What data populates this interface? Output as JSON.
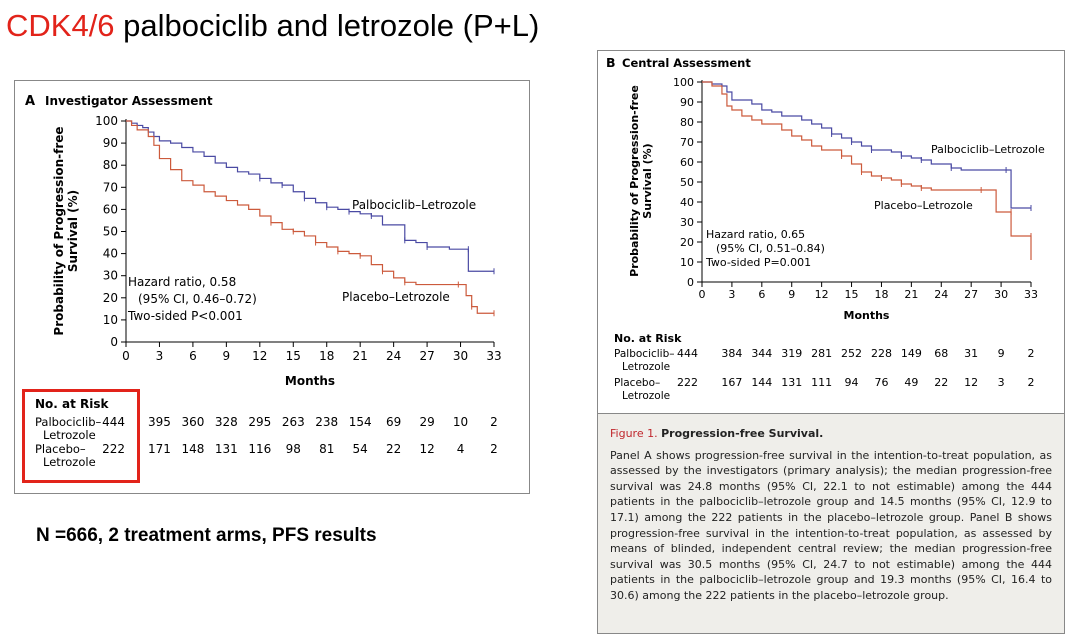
{
  "slide": {
    "title_red": "CDK4/6",
    "title_rest": "palbociclib and letrozole (P+L)",
    "summary": "N =666, 2 treatment arms, PFS results"
  },
  "colors": {
    "palbociclib": "#4a4aa3",
    "placebo": "#cc5a3c",
    "highlight": "#e2231a",
    "caption_bg": "#efeeea"
  },
  "chart_data": [
    {
      "type": "line",
      "panel_letter": "A",
      "title": "Investigator Assessment",
      "xlabel": "Months",
      "ylabel": "Probability of Progression-free Survival (%)",
      "ylabel_lines": [
        "Probability of Progression-free",
        "Survival (%)"
      ],
      "xlim": [
        0,
        33
      ],
      "ylim": [
        0,
        100
      ],
      "xticks": [
        0,
        3,
        6,
        9,
        12,
        15,
        18,
        21,
        24,
        27,
        30,
        33
      ],
      "yticks": [
        0,
        10,
        20,
        30,
        40,
        50,
        60,
        70,
        80,
        90,
        100
      ],
      "hazard_lines": [
        "Hazard ratio, 0.58",
        "(95% CI, 0.46–0.72)",
        "Two-sided P<0.001"
      ],
      "series": [
        {
          "name": "Palbociclib–Letrozole",
          "color": "#4a4aa3",
          "points": [
            [
              0,
              100
            ],
            [
              0.5,
              99
            ],
            [
              1,
              98
            ],
            [
              1.5,
              97
            ],
            [
              2,
              95
            ],
            [
              2.5,
              93
            ],
            [
              3,
              91
            ],
            [
              4,
              90
            ],
            [
              5,
              88
            ],
            [
              6,
              86
            ],
            [
              7,
              84
            ],
            [
              8,
              81
            ],
            [
              9,
              79
            ],
            [
              10,
              77
            ],
            [
              11,
              76
            ],
            [
              12,
              74
            ],
            [
              13,
              72
            ],
            [
              14,
              71
            ],
            [
              15,
              68
            ],
            [
              16,
              65
            ],
            [
              17,
              63
            ],
            [
              18,
              61
            ],
            [
              19,
              60
            ],
            [
              20,
              59
            ],
            [
              21,
              58
            ],
            [
              22,
              57
            ],
            [
              23,
              53
            ],
            [
              25,
              46
            ],
            [
              26,
              45
            ],
            [
              27,
              43
            ],
            [
              29,
              42
            ],
            [
              30.7,
              42
            ],
            [
              30.7,
              32
            ],
            [
              33,
              32
            ]
          ]
        },
        {
          "name": "Placebo–Letrozole",
          "color": "#cc5a3c",
          "points": [
            [
              0,
              100
            ],
            [
              0.5,
              98
            ],
            [
              1,
              96
            ],
            [
              2,
              93
            ],
            [
              2.5,
              89
            ],
            [
              3,
              83
            ],
            [
              4,
              78
            ],
            [
              5,
              73
            ],
            [
              6,
              71
            ],
            [
              7,
              68
            ],
            [
              8,
              66
            ],
            [
              9,
              64
            ],
            [
              10,
              62
            ],
            [
              11,
              60
            ],
            [
              12,
              57
            ],
            [
              13,
              54
            ],
            [
              14,
              51
            ],
            [
              15,
              50
            ],
            [
              16,
              48
            ],
            [
              17,
              45
            ],
            [
              18,
              43
            ],
            [
              19,
              41
            ],
            [
              20,
              40
            ],
            [
              21,
              39
            ],
            [
              22,
              35
            ],
            [
              23,
              32
            ],
            [
              24,
              29
            ],
            [
              25,
              27
            ],
            [
              26,
              26
            ],
            [
              29.8,
              26
            ],
            [
              30.5,
              21
            ],
            [
              31,
              16
            ],
            [
              31.5,
              13
            ],
            [
              33,
              13
            ]
          ]
        }
      ],
      "risk_table": {
        "header": "No. at Risk",
        "rows": [
          {
            "label": "Palbociclib–",
            "label2": "Letrozole",
            "values": [
              444,
              395,
              360,
              328,
              295,
              263,
              238,
              154,
              69,
              29,
              10,
              2
            ]
          },
          {
            "label": "Placebo–",
            "label2": "Letrozole",
            "values": [
              222,
              171,
              148,
              131,
              116,
              98,
              81,
              54,
              22,
              12,
              4,
              2
            ]
          }
        ]
      }
    },
    {
      "type": "line",
      "panel_letter": "B",
      "title": "Central Assessment",
      "xlabel": "Months",
      "ylabel": "Probability of Progression-free Survival (%)",
      "ylabel_lines": [
        "Probability of Progression-free",
        "Survival (%)"
      ],
      "xlim": [
        0,
        33
      ],
      "ylim": [
        0,
        100
      ],
      "xticks": [
        0,
        3,
        6,
        9,
        12,
        15,
        18,
        21,
        24,
        27,
        30,
        33
      ],
      "yticks": [
        0,
        10,
        20,
        30,
        40,
        50,
        60,
        70,
        80,
        90,
        100
      ],
      "hazard_lines": [
        "Hazard ratio, 0.65",
        "(95% CI, 0.51–0.84)",
        "Two-sided P=0.001"
      ],
      "series": [
        {
          "name": "Palbociclib–Letrozole",
          "color": "#4a4aa3",
          "points": [
            [
              0,
              100
            ],
            [
              1,
              99
            ],
            [
              2,
              98
            ],
            [
              2.5,
              95
            ],
            [
              3,
              91
            ],
            [
              5,
              89
            ],
            [
              6,
              86
            ],
            [
              7,
              85
            ],
            [
              8,
              83
            ],
            [
              10,
              81
            ],
            [
              11,
              79
            ],
            [
              12,
              77
            ],
            [
              13,
              74
            ],
            [
              14,
              72
            ],
            [
              15,
              70
            ],
            [
              16,
              68
            ],
            [
              17,
              66
            ],
            [
              19,
              65
            ],
            [
              20,
              63
            ],
            [
              21,
              62
            ],
            [
              22,
              61
            ],
            [
              23,
              59
            ],
            [
              25,
              57
            ],
            [
              26,
              56
            ],
            [
              30.5,
              56
            ],
            [
              31,
              37
            ],
            [
              33,
              37
            ]
          ]
        },
        {
          "name": "Placebo–Letrozole",
          "color": "#cc5a3c",
          "points": [
            [
              0,
              100
            ],
            [
              1,
              98
            ],
            [
              2,
              94
            ],
            [
              2.5,
              88
            ],
            [
              3,
              86
            ],
            [
              4,
              83
            ],
            [
              5,
              81
            ],
            [
              6,
              79
            ],
            [
              8,
              76
            ],
            [
              9,
              73
            ],
            [
              10,
              71
            ],
            [
              11,
              68
            ],
            [
              12,
              66
            ],
            [
              14,
              63
            ],
            [
              15,
              59
            ],
            [
              16,
              55
            ],
            [
              17,
              53
            ],
            [
              18,
              52
            ],
            [
              19,
              51
            ],
            [
              20,
              49
            ],
            [
              21,
              48
            ],
            [
              22,
              47
            ],
            [
              23,
              46
            ],
            [
              28,
              46
            ],
            [
              29.5,
              35
            ],
            [
              31,
              35
            ],
            [
              31,
              23
            ],
            [
              33,
              23
            ],
            [
              33,
              11
            ]
          ]
        }
      ],
      "risk_table": {
        "header": "No. at Risk",
        "rows": [
          {
            "label": "Palbociclib–",
            "label2": "Letrozole",
            "values": [
              444,
              384,
              344,
              319,
              281,
              252,
              228,
              149,
              68,
              31,
              9,
              2
            ]
          },
          {
            "label": "Placebo–",
            "label2": "Letrozole",
            "values": [
              222,
              167,
              144,
              131,
              111,
              94,
              76,
              49,
              22,
              12,
              3,
              2
            ]
          }
        ]
      }
    }
  ],
  "caption": {
    "fig_label": "Figure 1.",
    "fig_title": "Progression-free Survival.",
    "body": "Panel A shows progression-free survival in the intention-to-treat population, as assessed by the investigators (primary analysis); the median progression-free survival was 24.8 months (95% CI, 22.1 to not estimable) among the 444 patients in the palbociclib–letrozole group and 14.5 months (95% CI, 12.9 to 17.1) among the 222 patients in the placebo–letrozole group. Panel B shows progression-free survival in the intention-to-treat population, as assessed by means of blinded, independent central review; the median progression-free survival was 30.5 months (95% CI, 24.7 to not estimable) among the 444 patients in the palbociclib–letrozole group and 19.3 months (95% CI, 16.4 to 30.6) among the 222 patients in the placebo–letrozole group."
  }
}
